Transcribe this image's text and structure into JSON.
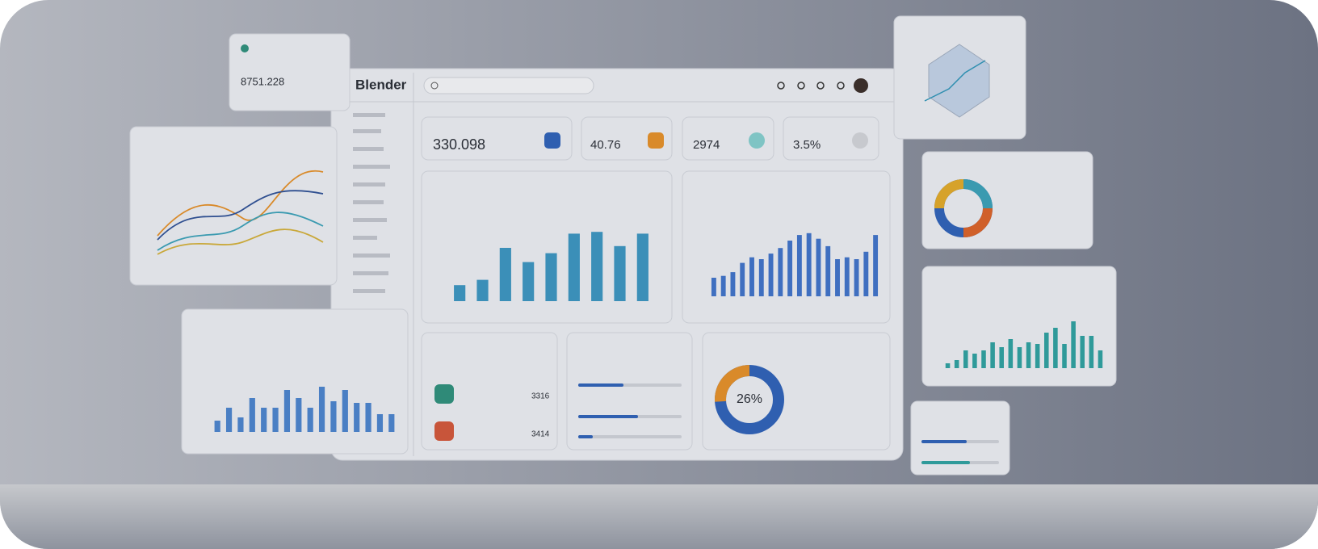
{
  "brand": "Blender",
  "float_card": {
    "value": "8751.228"
  },
  "kpis": [
    {
      "value": "330.098"
    },
    {
      "value": "40.76"
    },
    {
      "value": "2974"
    },
    {
      "value": "3.5%"
    }
  ],
  "donut": {
    "value": 26,
    "value_label": "26%"
  },
  "customers": [
    {
      "value": "3316"
    },
    {
      "value": "3414"
    }
  ],
  "charts": [
    {
      "type": "bar",
      "color": "#3b8fb8",
      "values": [
        18,
        24,
        60,
        44,
        54,
        76,
        78,
        62,
        76
      ]
    },
    {
      "type": "bar",
      "color": "#3f6fc0",
      "values": [
        20,
        22,
        26,
        36,
        42,
        40,
        46,
        52,
        60,
        66,
        68,
        62,
        54,
        40,
        42,
        40,
        48,
        66
      ]
    },
    {
      "type": "bar",
      "color": "#4a7fc4",
      "values": [
        14,
        30,
        18,
        42,
        30,
        30,
        52,
        42,
        30,
        56,
        38,
        52,
        36,
        36,
        22,
        22
      ]
    },
    {
      "type": "bar",
      "color": "#2f9a9a",
      "values": [
        6,
        10,
        22,
        18,
        22,
        32,
        26,
        36,
        26,
        32,
        30,
        44,
        50,
        30,
        58,
        40,
        40,
        22
      ]
    }
  ]
}
